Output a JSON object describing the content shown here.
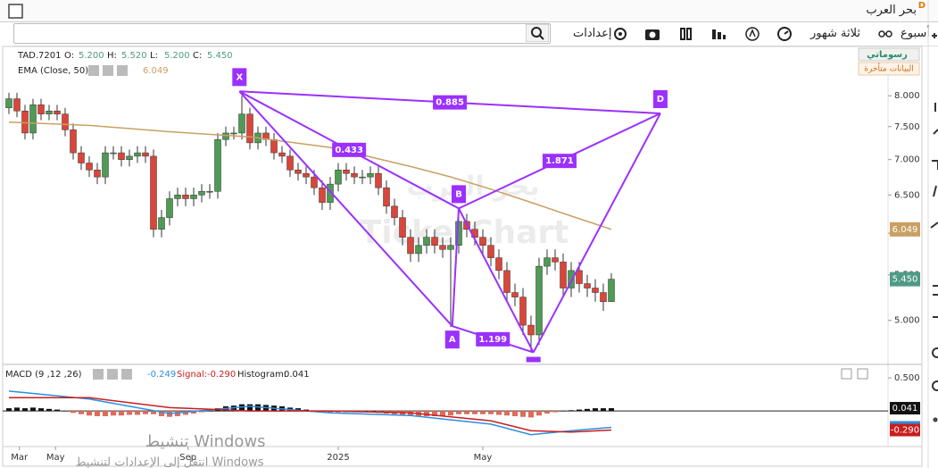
{
  "header": {
    "title": "بحر العرب",
    "badge": "D"
  },
  "toolbar": {
    "settings": "إعدادات",
    "period": "ثلاثة شهور",
    "interval": "أسبوع"
  },
  "overlay": {
    "drawings": "رسوماتي",
    "delayed": "البيانات متأخرة"
  },
  "watermark": {
    "arabic": "بحر العرب",
    "brand": "TickerChart"
  },
  "os_notice": {
    "title": "تنشيط Windows",
    "text": "انتقل إلى الإعدادات لتنشيط Windows"
  },
  "chart_data": [
    {
      "type": "candlestick",
      "symbol": "TAD.7201",
      "legend_items": [
        {
          "label": "O:",
          "value": "5.200"
        },
        {
          "label": "H:",
          "value": "5.520"
        },
        {
          "label": "L:",
          "value": "5.200"
        },
        {
          "label": "C:",
          "value": "5.450"
        }
      ],
      "log_scale": true,
      "ylim": [
        4.56,
        8.87
      ],
      "yticks": [
        {
          "value": 5,
          "label": "5.000"
        },
        {
          "value": 5.5,
          "label": "5.500"
        },
        {
          "value": 6,
          "label": "6.000"
        },
        {
          "value": 6.5,
          "label": "6.500"
        },
        {
          "value": 7,
          "label": "7.000"
        },
        {
          "value": 7.5,
          "label": "7.500"
        },
        {
          "value": 8,
          "label": "8.000"
        }
      ],
      "xticks": [
        {
          "value": 1.3,
          "label": "Mar"
        },
        {
          "value": 5.8,
          "label": "May"
        },
        {
          "value": 22.3,
          "label": "Sep"
        },
        {
          "value": 41,
          "label": "2025"
        },
        {
          "value": 59,
          "label": "May"
        }
      ],
      "colors": {
        "up": "#4f9a55",
        "down": "#d9463a",
        "wick": "#333333"
      },
      "open": [
        7.8,
        7.95,
        7.75,
        7.4,
        7.85,
        7.7,
        7.75,
        7.7,
        7.45,
        7.1,
        6.95,
        6.85,
        6.75,
        7.1,
        7.1,
        7.0,
        7.05,
        7.1,
        7.05,
        6.05,
        6.2,
        6.45,
        6.5,
        6.45,
        6.5,
        6.55,
        6.55,
        7.3,
        7.4,
        7.4,
        7.7,
        7.25,
        7.4,
        7.3,
        7.1,
        7.05,
        6.85,
        6.8,
        6.75,
        6.6,
        6.4,
        6.65,
        6.85,
        6.8,
        6.75,
        6.75,
        6.8,
        6.6,
        6.35,
        6.2,
        5.95,
        5.75,
        5.85,
        5.95,
        5.85,
        5.8,
        5.85,
        6.15,
        6.05,
        5.95,
        5.85,
        5.7,
        5.55,
        5.3,
        5.25,
        4.95,
        4.85,
        5.6,
        5.7,
        5.65,
        5.35,
        5.55,
        5.4,
        5.35,
        5.3,
        5.2
      ],
      "high": [
        8.05,
        8.05,
        7.85,
        7.95,
        7.95,
        7.85,
        7.85,
        7.8,
        7.55,
        7.2,
        7.05,
        6.95,
        7.2,
        7.2,
        7.2,
        7.15,
        7.2,
        7.2,
        7.15,
        6.3,
        6.55,
        6.6,
        6.6,
        6.6,
        6.65,
        6.65,
        7.4,
        7.5,
        7.5,
        8.0,
        7.8,
        7.5,
        7.5,
        7.4,
        7.2,
        7.15,
        6.95,
        6.9,
        6.85,
        6.7,
        6.75,
        6.95,
        6.95,
        6.9,
        6.85,
        6.9,
        6.9,
        6.7,
        6.45,
        6.3,
        6.05,
        5.95,
        6.05,
        6.05,
        5.95,
        5.95,
        6.25,
        6.25,
        6.15,
        6.05,
        5.95,
        5.8,
        5.65,
        5.4,
        5.35,
        5.05,
        5.7,
        5.8,
        5.8,
        5.75,
        5.65,
        5.65,
        5.5,
        5.45,
        5.4,
        5.52
      ],
      "low": [
        7.7,
        7.65,
        7.3,
        7.3,
        7.6,
        7.6,
        7.6,
        7.35,
        7.0,
        6.85,
        6.75,
        6.65,
        6.65,
        7.0,
        6.9,
        6.9,
        6.95,
        6.95,
        5.95,
        5.95,
        6.1,
        6.35,
        6.35,
        6.35,
        6.4,
        6.45,
        6.45,
        7.2,
        7.3,
        7.3,
        7.15,
        7.15,
        7.2,
        7.0,
        6.95,
        6.75,
        6.7,
        6.65,
        6.5,
        6.3,
        6.3,
        6.55,
        6.7,
        6.65,
        6.65,
        6.65,
        6.5,
        6.25,
        6.1,
        5.85,
        5.65,
        5.65,
        5.75,
        5.75,
        5.7,
        4.93,
        5.75,
        5.95,
        5.85,
        5.75,
        5.6,
        5.45,
        5.2,
        5.15,
        4.85,
        4.68,
        4.75,
        5.5,
        5.55,
        5.25,
        5.25,
        5.3,
        5.25,
        5.2,
        5.1,
        5.2
      ],
      "close": [
        7.95,
        7.75,
        7.4,
        7.85,
        7.7,
        7.75,
        7.7,
        7.45,
        7.1,
        6.95,
        6.85,
        6.75,
        7.1,
        7.1,
        7.0,
        7.05,
        7.1,
        7.05,
        6.05,
        6.2,
        6.45,
        6.5,
        6.45,
        6.5,
        6.55,
        6.55,
        7.3,
        7.4,
        7.4,
        7.7,
        7.25,
        7.4,
        7.3,
        7.1,
        7.05,
        6.85,
        6.8,
        6.75,
        6.6,
        6.4,
        6.65,
        6.85,
        6.8,
        6.75,
        6.75,
        6.8,
        6.6,
        6.35,
        6.2,
        5.95,
        5.75,
        5.85,
        5.95,
        5.85,
        5.8,
        5.85,
        6.15,
        6.05,
        5.95,
        5.85,
        5.7,
        5.55,
        5.3,
        5.25,
        4.95,
        4.85,
        5.6,
        5.7,
        5.65,
        5.35,
        5.55,
        5.4,
        5.35,
        5.3,
        5.2,
        5.45
      ],
      "close_color": "#4f9a86",
      "ema": {
        "name": "EMA (Close, 50)",
        "color": "#c9a063",
        "x": [
          0,
          10,
          20,
          30,
          40,
          50,
          55,
          60,
          65,
          70,
          75
        ],
        "values": [
          7.57,
          7.52,
          7.42,
          7.34,
          7.18,
          6.9,
          6.75,
          6.58,
          6.4,
          6.22,
          6.049
        ]
      },
      "pattern": {
        "color": "#9b30ff",
        "points": {
          "X": {
            "label": "X",
            "x": 28.7,
            "y": 8.074
          },
          "A": {
            "label": "A",
            "x": 55.2,
            "y": 4.94
          },
          "B": {
            "label": "B",
            "x": 56,
            "y": 6.32
          },
          "C": {
            "x": 65.3,
            "y": 4.676
          },
          "D": {
            "label": "D",
            "x": 81.1,
            "y": 7.71
          }
        },
        "ratios": {
          "XD": 0.885,
          "XB": 0.433,
          "BD": 1.871,
          "AC": 1.199
        }
      }
    },
    {
      "type": "macd",
      "title": "MACD (9 ,12 ,26)",
      "ylim": [
        -0.54,
        0.65
      ],
      "yticks": [
        {
          "value": 0.5,
          "label": "0.500"
        }
      ],
      "histogram": {
        "name": "Histogram:",
        "colors": {
          "up": "#111111",
          "down": "#e06a5a"
        },
        "values": [
          0.04,
          0.05,
          0.04,
          0.05,
          0.04,
          0.03,
          0.02,
          0,
          -0.03,
          -0.05,
          -0.07,
          -0.08,
          -0.08,
          -0.07,
          -0.07,
          -0.06,
          -0.06,
          -0.05,
          -0.05,
          -0.08,
          -0.09,
          -0.08,
          -0.06,
          -0.04,
          -0.02,
          0,
          0.04,
          0.07,
          0.08,
          0.1,
          0.1,
          0.1,
          0.09,
          0.08,
          0.07,
          0.05,
          0.04,
          0.02,
          0,
          -0.02,
          -0.02,
          -0.02,
          -0.02,
          -0.02,
          -0.02,
          -0.02,
          -0.03,
          -0.04,
          -0.05,
          -0.06,
          -0.07,
          -0.08,
          -0.08,
          -0.08,
          -0.08,
          -0.07,
          -0.05,
          -0.05,
          -0.05,
          -0.05,
          -0.05,
          -0.06,
          -0.07,
          -0.08,
          -0.09,
          -0.1,
          -0.07,
          -0.04,
          -0.02,
          0,
          0.01,
          0.02,
          0.03,
          0.04,
          0.04,
          0.041
        ]
      },
      "series": [
        {
          "color": "#2b8fe0",
          "x": [
            0,
            10,
            20,
            30,
            40,
            50,
            60,
            65,
            70,
            75
          ],
          "values": [
            0.3,
            0.18,
            -0.04,
            0.07,
            -0.03,
            -0.07,
            -0.2,
            -0.36,
            -0.3,
            -0.249
          ]
        },
        {
          "name": "Signal:",
          "color": "#c81e1e",
          "x": [
            0,
            10,
            20,
            30,
            40,
            50,
            60,
            65,
            70,
            75
          ],
          "values": [
            0.2,
            0.2,
            0.05,
            0.0,
            0.0,
            -0.03,
            -0.15,
            -0.3,
            -0.32,
            -0.29
          ],
          "last_label": "-0.290"
        }
      ]
    }
  ]
}
